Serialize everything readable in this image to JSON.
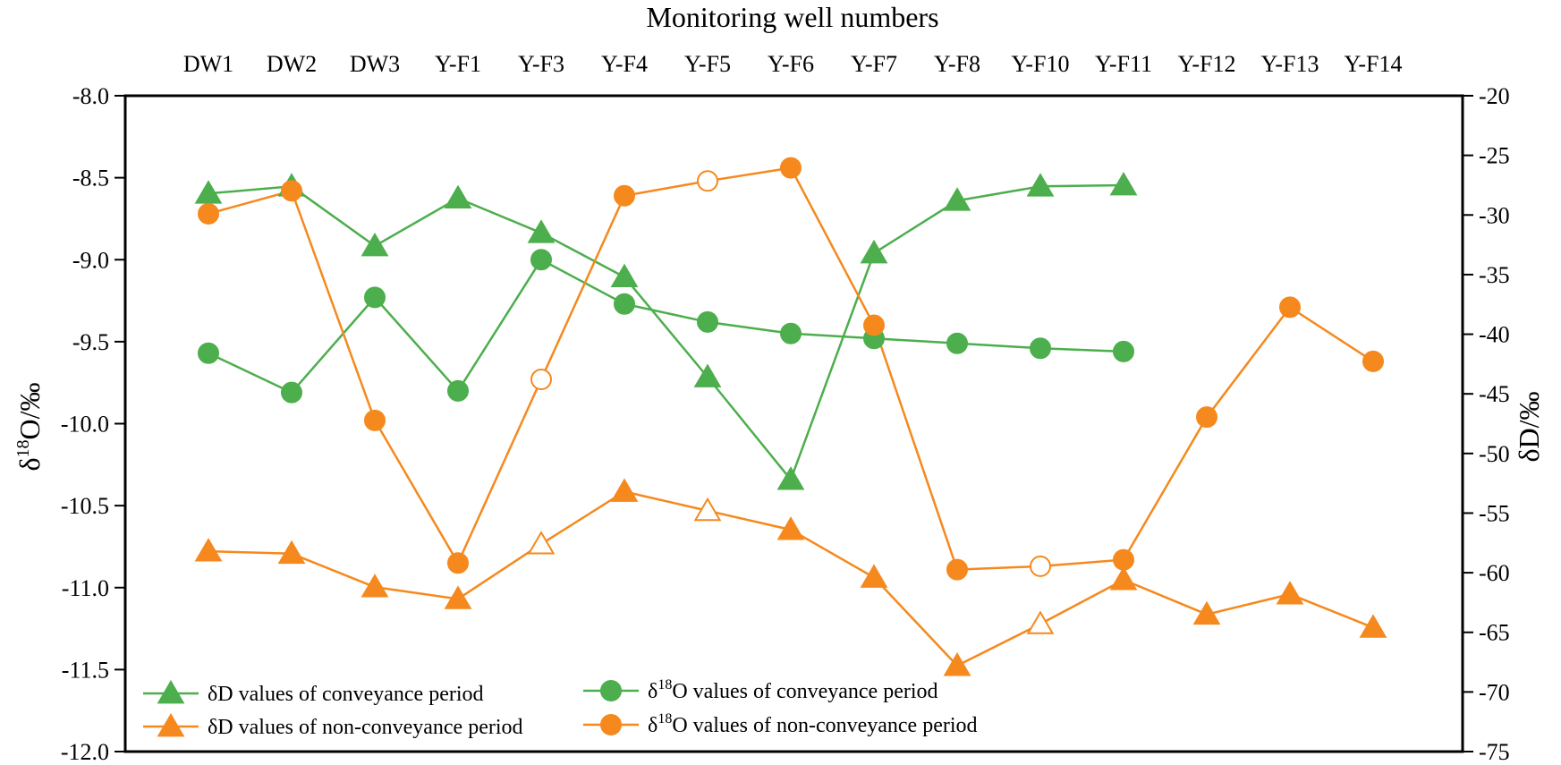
{
  "chart_data": {
    "type": "line",
    "title": "Monitoring well numbers",
    "xlabel": "Monitoring well numbers",
    "categories": [
      "DW1",
      "DW2",
      "DW3",
      "Y-F1",
      "Y-F3",
      "Y-F4",
      "Y-F5",
      "Y-F6",
      "Y-F7",
      "Y-F8",
      "Y-F10",
      "Y-F11",
      "Y-F12",
      "Y-F13",
      "Y-F14"
    ],
    "left_axis": {
      "label_main": "δ",
      "label_sup": "18",
      "label_rest": "O/‰",
      "ylim": [
        -12.0,
        -8.0
      ],
      "ticks": [
        "-12.0",
        "-11.5",
        "-11.0",
        "-10.5",
        "-10.0",
        "-9.5",
        "-9.0",
        "-8.5",
        "-8.0"
      ],
      "tick_values": [
        -12.0,
        -11.5,
        -11.0,
        -10.5,
        -10.0,
        -9.5,
        -9.0,
        -8.5,
        -8.0
      ]
    },
    "right_axis": {
      "label": "δD/‰",
      "ylim": [
        -75,
        -20
      ],
      "ticks": [
        "-75",
        "-70",
        "-65",
        "-60",
        "-55",
        "-50",
        "-45",
        "-40",
        "-35",
        "-30",
        "-25",
        "-20"
      ],
      "tick_values": [
        -75,
        -70,
        -65,
        -60,
        -55,
        -50,
        -45,
        -40,
        -35,
        -30,
        -25,
        -20
      ]
    },
    "series": [
      {
        "name": "δD values of conveyance period",
        "legend_main": "δD values of conveyance period",
        "axis": "right",
        "marker": "triangle",
        "color": "#4cae4c",
        "values": [
          -28.2,
          -27.6,
          -32.6,
          -28.6,
          -31.5,
          -35.2,
          -43.6,
          -52.2,
          -33.2,
          -28.8,
          -27.6,
          -27.5,
          null,
          null,
          null
        ],
        "hollow": [
          false,
          false,
          false,
          false,
          false,
          false,
          false,
          false,
          false,
          false,
          false,
          false,
          false,
          false,
          false
        ]
      },
      {
        "name": "δ18O values of conveyance period",
        "legend_main": "δ",
        "legend_sup": "18",
        "legend_rest": "O values of conveyance period",
        "axis": "left",
        "marker": "circle",
        "color": "#4cae4c",
        "values": [
          -9.57,
          -9.81,
          -9.23,
          -9.8,
          -9.0,
          -9.27,
          -9.38,
          -9.45,
          -9.48,
          -9.51,
          -9.54,
          -9.56,
          null,
          null,
          null
        ],
        "hollow": [
          false,
          false,
          false,
          false,
          false,
          false,
          false,
          false,
          false,
          false,
          false,
          false,
          false,
          false,
          false
        ]
      },
      {
        "name": "δD values of non-conveyance period",
        "legend_main": "δD values of non-conveyance period",
        "axis": "right",
        "marker": "triangle",
        "color": "#f5891e",
        "values": [
          -58.2,
          -58.4,
          -61.2,
          -62.2,
          -57.6,
          -53.2,
          -54.8,
          -56.4,
          -60.4,
          -67.8,
          -64.3,
          -60.6,
          -63.5,
          -61.8,
          -64.6
        ],
        "hollow": [
          false,
          false,
          false,
          false,
          true,
          false,
          true,
          false,
          false,
          false,
          true,
          false,
          false,
          false,
          false
        ]
      },
      {
        "name": "δ18O values of non-conveyance period",
        "legend_main": "δ",
        "legend_sup": "18",
        "legend_rest": "O values of non-conveyance period",
        "axis": "left",
        "marker": "circle",
        "color": "#f5891e",
        "values": [
          -8.72,
          -8.58,
          -9.98,
          -10.85,
          -9.73,
          -8.61,
          -8.52,
          -8.44,
          -9.4,
          -10.89,
          -10.87,
          -10.83,
          -9.96,
          -9.29,
          -9.62
        ],
        "hollow": [
          false,
          false,
          false,
          false,
          true,
          false,
          true,
          false,
          false,
          false,
          true,
          false,
          false,
          false,
          false
        ]
      }
    ],
    "legend_position": "bottom-left"
  }
}
